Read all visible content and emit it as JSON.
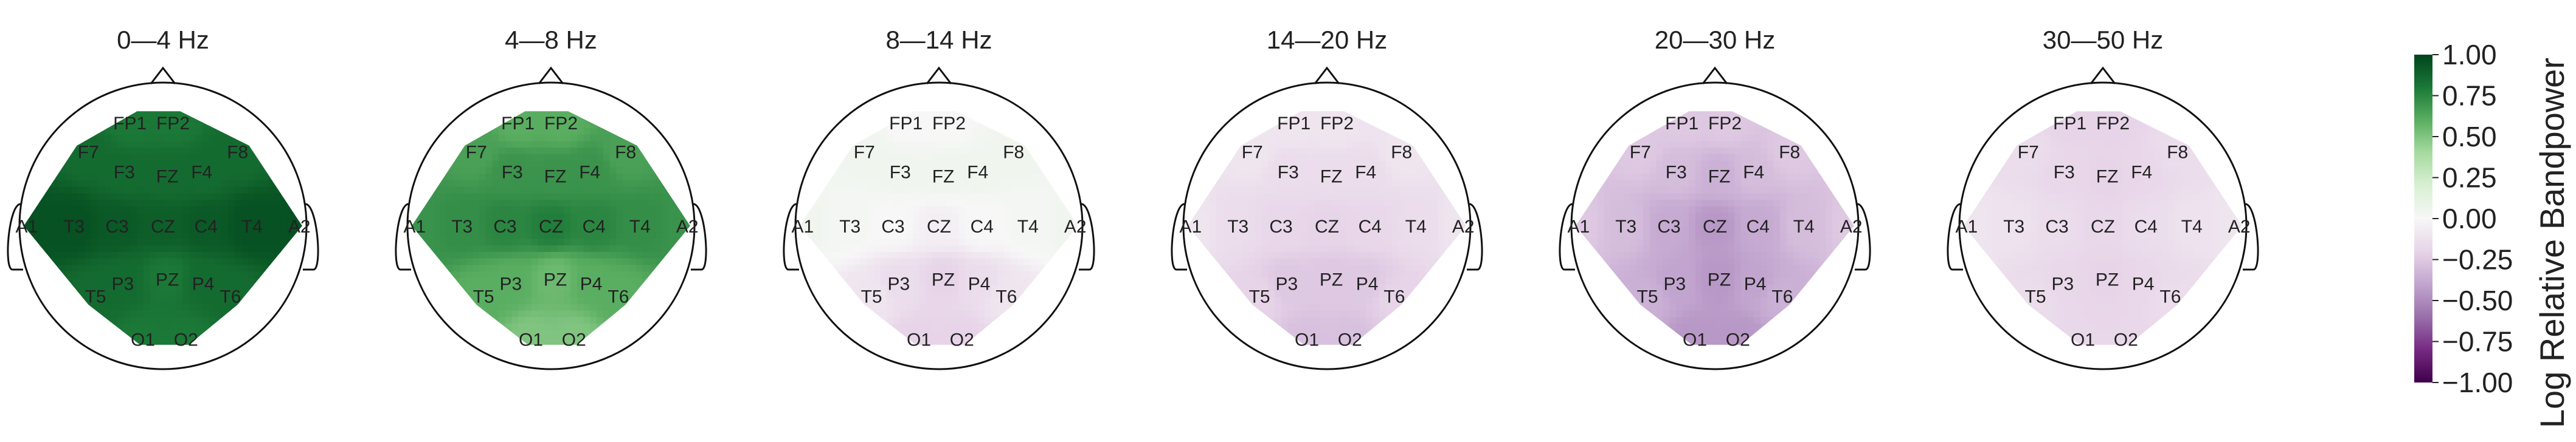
{
  "chart_data": {
    "type": "heatmap",
    "panels": [
      {
        "title": "0—4 Hz",
        "values": {
          "FP1": 0.8,
          "FP2": 0.8,
          "F7": 0.85,
          "F3": 0.85,
          "FZ": 0.85,
          "F4": 0.85,
          "F8": 0.85,
          "A1": 0.95,
          "T3": 0.95,
          "C3": 0.92,
          "CZ": 0.9,
          "C4": 0.92,
          "T4": 0.95,
          "A2": 0.95,
          "T5": 0.85,
          "P3": 0.85,
          "PZ": 0.8,
          "P4": 0.85,
          "T6": 0.85,
          "O1": 0.8,
          "O2": 0.8
        }
      },
      {
        "title": "4—8 Hz",
        "values": {
          "FP1": 0.6,
          "FP2": 0.6,
          "F7": 0.65,
          "F3": 0.7,
          "FZ": 0.7,
          "F4": 0.7,
          "F8": 0.65,
          "A1": 0.7,
          "T3": 0.72,
          "C3": 0.75,
          "CZ": 0.78,
          "C4": 0.75,
          "T4": 0.72,
          "A2": 0.7,
          "T5": 0.6,
          "P3": 0.6,
          "PZ": 0.55,
          "P4": 0.6,
          "T6": 0.6,
          "O1": 0.5,
          "O2": 0.5
        }
      },
      {
        "title": "8—14 Hz",
        "values": {
          "FP1": 0.0,
          "FP2": 0.0,
          "F7": 0.05,
          "F3": 0.05,
          "FZ": 0.05,
          "F4": 0.05,
          "F8": 0.05,
          "A1": 0.05,
          "T3": 0.02,
          "C3": 0.0,
          "CZ": -0.05,
          "C4": 0.0,
          "T4": 0.02,
          "A2": 0.05,
          "T5": -0.1,
          "P3": -0.15,
          "PZ": -0.2,
          "P4": -0.15,
          "T6": -0.1,
          "O1": -0.2,
          "O2": -0.2
        }
      },
      {
        "title": "14—20 Hz",
        "values": {
          "FP1": -0.1,
          "FP2": -0.1,
          "F7": -0.1,
          "F3": -0.15,
          "FZ": -0.15,
          "F4": -0.15,
          "F8": -0.1,
          "A1": -0.1,
          "T3": -0.15,
          "C3": -0.18,
          "CZ": -0.2,
          "C4": -0.18,
          "T4": -0.15,
          "A2": -0.1,
          "T5": -0.2,
          "P3": -0.25,
          "PZ": -0.25,
          "P4": -0.25,
          "T6": -0.2,
          "O1": -0.28,
          "O2": -0.28
        }
      },
      {
        "title": "20—30 Hz",
        "values": {
          "FP1": -0.25,
          "FP2": -0.25,
          "F7": -0.25,
          "F3": -0.3,
          "FZ": -0.35,
          "F4": -0.3,
          "F8": -0.25,
          "A1": -0.25,
          "T3": -0.3,
          "C3": -0.38,
          "CZ": -0.45,
          "C4": -0.38,
          "T4": -0.3,
          "A2": -0.25,
          "T5": -0.35,
          "P3": -0.4,
          "PZ": -0.45,
          "P4": -0.4,
          "T6": -0.35,
          "O1": -0.45,
          "O2": -0.45
        }
      },
      {
        "title": "30—50 Hz",
        "values": {
          "FP1": -0.2,
          "FP2": -0.2,
          "F7": -0.15,
          "F3": -0.18,
          "FZ": -0.2,
          "F4": -0.18,
          "F8": -0.15,
          "A1": -0.1,
          "T3": -0.12,
          "C3": -0.15,
          "CZ": -0.18,
          "C4": -0.15,
          "T4": -0.12,
          "A2": -0.1,
          "T5": -0.15,
          "P3": -0.18,
          "PZ": -0.2,
          "P4": -0.18,
          "T6": -0.15,
          "O1": -0.18,
          "O2": -0.18
        }
      }
    ],
    "colorbar": {
      "label": "Log Relative Bandpower",
      "range": [
        -1.0,
        1.0
      ],
      "colormap": "PRGn",
      "ticks": [
        "1.00",
        "0.75",
        "0.50",
        "0.25",
        "0.00",
        "−0.25",
        "−0.50",
        "−0.75",
        "−1.00"
      ],
      "tick_values": [
        1.0,
        0.75,
        0.5,
        0.25,
        0.0,
        -0.25,
        -0.5,
        -0.75,
        -1.0
      ]
    },
    "colormap_stops": [
      "#40004b",
      "#762a83",
      "#9970ab",
      "#c2a5cf",
      "#e7d4e8",
      "#f7f7f7",
      "#d9f0d3",
      "#a6dba0",
      "#5aae61",
      "#1b7837",
      "#00441b"
    ]
  }
}
